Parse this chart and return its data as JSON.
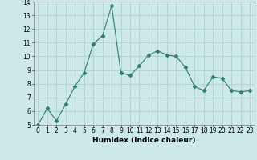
{
  "x": [
    0,
    1,
    2,
    3,
    4,
    5,
    6,
    7,
    8,
    9,
    10,
    11,
    12,
    13,
    14,
    15,
    16,
    17,
    18,
    19,
    20,
    21,
    22,
    23
  ],
  "y": [
    5.0,
    6.2,
    5.3,
    6.5,
    7.8,
    8.8,
    10.9,
    11.5,
    13.7,
    8.8,
    8.6,
    9.3,
    10.1,
    10.4,
    10.1,
    10.0,
    9.2,
    7.8,
    7.5,
    8.5,
    8.4,
    7.5,
    7.4,
    7.5
  ],
  "line_color": "#2d7d6e",
  "marker": "D",
  "marker_size": 2.5,
  "xlabel": "Humidex (Indice chaleur)",
  "ylim": [
    5,
    14
  ],
  "xlim": [
    -0.5,
    23.5
  ],
  "yticks": [
    5,
    6,
    7,
    8,
    9,
    10,
    11,
    12,
    13,
    14
  ],
  "xticks": [
    0,
    1,
    2,
    3,
    4,
    5,
    6,
    7,
    8,
    9,
    10,
    11,
    12,
    13,
    14,
    15,
    16,
    17,
    18,
    19,
    20,
    21,
    22,
    23
  ],
  "bg_color": "#cce8e8",
  "grid_color": "#aacccc",
  "tick_fontsize": 5.5,
  "xlabel_fontsize": 6.5
}
